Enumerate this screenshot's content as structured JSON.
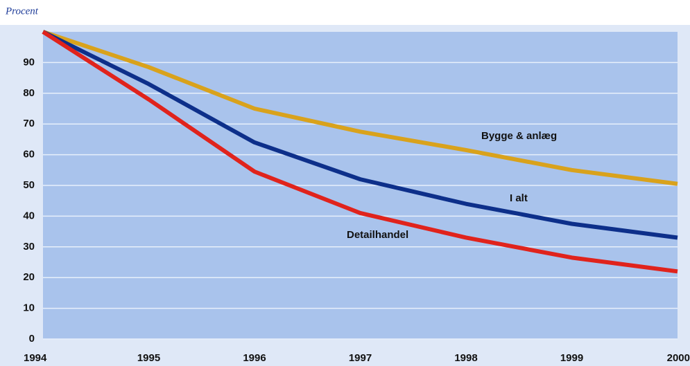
{
  "chart_data": {
    "type": "line",
    "y_label": "Procent",
    "x": [
      1994,
      1995,
      1996,
      1997,
      1998,
      1999,
      2000
    ],
    "xlim": [
      1994,
      2000
    ],
    "xticks": [
      1994,
      1995,
      1996,
      1997,
      1998,
      1999,
      2000
    ],
    "ylim": [
      0,
      100
    ],
    "yticks": [
      0,
      10,
      20,
      30,
      40,
      50,
      60,
      70,
      80,
      90
    ],
    "grid": true,
    "series": [
      {
        "name": "Bygge & anlæg",
        "color": "#d9a21c",
        "values": [
          100,
          88.5,
          75,
          67.5,
          61.5,
          55,
          50.5
        ]
      },
      {
        "name": "I alt",
        "color": "#0d2f8a",
        "values": [
          100,
          83,
          64,
          52,
          44,
          37.5,
          33
        ]
      },
      {
        "name": "Detailhandel",
        "color": "#e0231c",
        "values": [
          100,
          78,
          54.5,
          41,
          33,
          26.5,
          22
        ]
      }
    ]
  }
}
